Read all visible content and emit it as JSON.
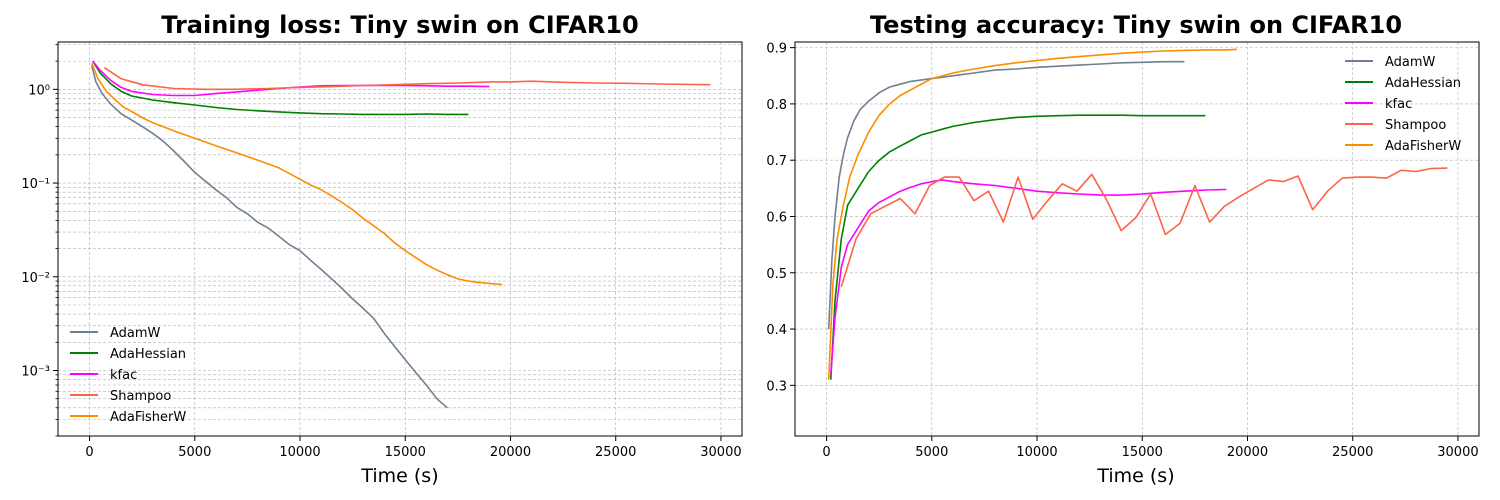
{
  "chart_data": [
    {
      "type": "line",
      "title": "Training loss: Tiny swin on CIFAR10",
      "xlabel": "Time (s)",
      "ylabel": "",
      "xlim": [
        -1500,
        31000
      ],
      "ylim": [
        0.0002,
        3.2
      ],
      "yscale": "log",
      "grid": true,
      "legend_position": "lower-left",
      "x_ticks": [
        0,
        5000,
        10000,
        15000,
        20000,
        25000,
        30000
      ],
      "x_tick_labels": [
        "0",
        "5000",
        "10000",
        "15000",
        "20000",
        "25000",
        "30000"
      ],
      "y_ticks": [
        0.001,
        0.01,
        0.1,
        1
      ],
      "y_tick_labels": [
        "10⁻³",
        "10⁻²",
        "10⁻¹",
        "10⁰"
      ],
      "series": [
        {
          "name": "AdamW",
          "color": "#708090",
          "x": [
            100,
            300,
            600,
            1000,
            1500,
            2000,
            2500,
            3000,
            3500,
            4000,
            4500,
            5000,
            5500,
            6000,
            6500,
            7000,
            7500,
            8000,
            8500,
            9000,
            9500,
            10000,
            10500,
            11000,
            11500,
            12000,
            12500,
            13000,
            13500,
            14000,
            14500,
            15000,
            15500,
            16000,
            16500,
            17000
          ],
          "y": [
            1.8,
            1.2,
            0.9,
            0.7,
            0.55,
            0.47,
            0.4,
            0.34,
            0.28,
            0.22,
            0.17,
            0.13,
            0.105,
            0.085,
            0.07,
            0.055,
            0.047,
            0.038,
            0.033,
            0.027,
            0.022,
            0.019,
            0.015,
            0.012,
            0.0095,
            0.0075,
            0.0058,
            0.0046,
            0.0036,
            0.0025,
            0.0018,
            0.0013,
            0.00095,
            0.0007,
            0.0005,
            0.0004
          ]
        },
        {
          "name": "AdaHessian",
          "color": "#008000",
          "x": [
            150,
            500,
            1000,
            1500,
            2000,
            3000,
            4000,
            5000,
            6000,
            7000,
            8000,
            9000,
            10000,
            11000,
            12000,
            13000,
            14000,
            15000,
            16000,
            17000,
            18000
          ],
          "y": [
            2.0,
            1.5,
            1.15,
            0.95,
            0.85,
            0.77,
            0.72,
            0.68,
            0.64,
            0.61,
            0.59,
            0.575,
            0.56,
            0.55,
            0.545,
            0.54,
            0.54,
            0.54,
            0.545,
            0.54,
            0.54
          ]
        },
        {
          "name": "kfac",
          "color": "#ff00ff",
          "x": [
            150,
            500,
            1000,
            1500,
            2000,
            3000,
            4000,
            5000,
            6000,
            7000,
            8000,
            9000,
            10000,
            11000,
            12000,
            13000,
            14000,
            15000,
            16000,
            17000,
            18000,
            19000
          ],
          "y": [
            2.0,
            1.6,
            1.25,
            1.05,
            0.95,
            0.88,
            0.86,
            0.86,
            0.9,
            0.94,
            0.98,
            1.02,
            1.06,
            1.09,
            1.1,
            1.1,
            1.1,
            1.1,
            1.09,
            1.08,
            1.08,
            1.07
          ]
        },
        {
          "name": "Shampoo",
          "color": "#ff6347",
          "x": [
            700,
            1500,
            2500,
            4000,
            5500,
            7000,
            8500,
            10000,
            11500,
            13000,
            14500,
            16000,
            17500,
            19000,
            20000,
            21000,
            22500,
            24000,
            25500,
            27000,
            28500,
            29500
          ],
          "y": [
            1.7,
            1.3,
            1.12,
            1.02,
            1.0,
            1.0,
            1.02,
            1.05,
            1.07,
            1.1,
            1.12,
            1.15,
            1.17,
            1.2,
            1.2,
            1.22,
            1.19,
            1.17,
            1.16,
            1.14,
            1.13,
            1.12
          ]
        },
        {
          "name": "AdaFisherW",
          "color": "#ff8c00",
          "x": [
            100,
            400,
            800,
            1200,
            1600,
            2000,
            2500,
            3000,
            3500,
            4000,
            5000,
            6000,
            7000,
            8000,
            9000,
            10000,
            10500,
            11000,
            11500,
            12000,
            12500,
            13000,
            13500,
            14000,
            14500,
            15000,
            15500,
            16000,
            16500,
            17000,
            17500,
            18000,
            18500,
            19000,
            19600
          ],
          "y": [
            1.9,
            1.3,
            0.95,
            0.78,
            0.65,
            0.58,
            0.5,
            0.44,
            0.4,
            0.36,
            0.3,
            0.25,
            0.21,
            0.175,
            0.145,
            0.11,
            0.095,
            0.085,
            0.073,
            0.062,
            0.052,
            0.042,
            0.035,
            0.029,
            0.023,
            0.019,
            0.016,
            0.0135,
            0.0118,
            0.0105,
            0.0095,
            0.009,
            0.0087,
            0.0085,
            0.0083
          ]
        }
      ]
    },
    {
      "type": "line",
      "title": "Testing accuracy: Tiny swin on CIFAR10",
      "xlabel": "Time (s)",
      "ylabel": "",
      "xlim": [
        -1500,
        31000
      ],
      "ylim": [
        0.21,
        0.91
      ],
      "yscale": "linear",
      "grid": true,
      "legend_position": "upper-right",
      "x_ticks": [
        0,
        5000,
        10000,
        15000,
        20000,
        25000,
        30000
      ],
      "x_tick_labels": [
        "0",
        "5000",
        "10000",
        "15000",
        "20000",
        "25000",
        "30000"
      ],
      "y_ticks": [
        0.3,
        0.4,
        0.5,
        0.6,
        0.7,
        0.8,
        0.9
      ],
      "y_tick_labels": [
        "0.3",
        "0.4",
        "0.5",
        "0.6",
        "0.7",
        "0.8",
        "0.9"
      ],
      "series": [
        {
          "name": "AdamW",
          "color": "#708090",
          "x": [
            100,
            250,
            400,
            600,
            800,
            1000,
            1300,
            1600,
            2000,
            2500,
            3000,
            3500,
            4000,
            5000,
            6000,
            7000,
            8000,
            9000,
            10000,
            11000,
            12000,
            13000,
            14000,
            15000,
            16000,
            17000
          ],
          "y": [
            0.4,
            0.52,
            0.6,
            0.67,
            0.71,
            0.74,
            0.77,
            0.79,
            0.805,
            0.82,
            0.83,
            0.835,
            0.84,
            0.845,
            0.85,
            0.855,
            0.86,
            0.862,
            0.865,
            0.867,
            0.869,
            0.871,
            0.873,
            0.874,
            0.875,
            0.875
          ]
        },
        {
          "name": "AdaHessian",
          "color": "#008000",
          "x": [
            200,
            400,
            700,
            1000,
            1500,
            2000,
            2500,
            3000,
            3500,
            4000,
            4500,
            5000,
            5500,
            6000,
            7000,
            8000,
            9000,
            10000,
            11000,
            12000,
            13000,
            14000,
            15000,
            16000,
            17000,
            18000
          ],
          "y": [
            0.31,
            0.45,
            0.56,
            0.62,
            0.65,
            0.68,
            0.7,
            0.715,
            0.725,
            0.735,
            0.745,
            0.75,
            0.755,
            0.76,
            0.767,
            0.772,
            0.776,
            0.778,
            0.779,
            0.78,
            0.78,
            0.78,
            0.779,
            0.779,
            0.779,
            0.779
          ]
        },
        {
          "name": "kfac",
          "color": "#ff00ff",
          "x": [
            200,
            400,
            700,
            1000,
            1500,
            2000,
            2500,
            3000,
            3500,
            4000,
            4500,
            5000,
            5500,
            6000,
            7000,
            8000,
            9000,
            10000,
            11000,
            12000,
            13000,
            14000,
            15000,
            16000,
            17000,
            18000,
            19000
          ],
          "y": [
            0.32,
            0.42,
            0.51,
            0.55,
            0.58,
            0.61,
            0.625,
            0.635,
            0.645,
            0.652,
            0.658,
            0.662,
            0.665,
            0.662,
            0.658,
            0.655,
            0.65,
            0.645,
            0.642,
            0.64,
            0.638,
            0.638,
            0.64,
            0.643,
            0.645,
            0.647,
            0.648
          ]
        },
        {
          "name": "Shampoo",
          "color": "#ff6347",
          "x": [
            700,
            1400,
            2100,
            3500,
            4200,
            4900,
            5600,
            6300,
            7000,
            7700,
            8400,
            9100,
            9800,
            10500,
            11200,
            11900,
            12600,
            13300,
            14000,
            14700,
            15400,
            16100,
            16800,
            17500,
            18200,
            18900,
            19600,
            20300,
            21000,
            21700,
            22400,
            23100,
            23800,
            24500,
            25200,
            25900,
            26600,
            27300,
            28000,
            28700,
            29500
          ],
          "y": [
            0.475,
            0.56,
            0.605,
            0.632,
            0.605,
            0.655,
            0.67,
            0.67,
            0.628,
            0.645,
            0.59,
            0.67,
            0.595,
            0.628,
            0.658,
            0.645,
            0.675,
            0.63,
            0.575,
            0.598,
            0.64,
            0.568,
            0.588,
            0.655,
            0.59,
            0.618,
            0.635,
            0.65,
            0.665,
            0.662,
            0.672,
            0.612,
            0.645,
            0.668,
            0.67,
            0.67,
            0.668,
            0.682,
            0.68,
            0.685,
            0.686
          ]
        },
        {
          "name": "AdaFisherW",
          "color": "#ff8c00",
          "x": [
            100,
            300,
            500,
            800,
            1100,
            1500,
            2000,
            2500,
            3000,
            3500,
            4000,
            4500,
            5000,
            6000,
            7000,
            8000,
            9000,
            10000,
            11000,
            12000,
            13000,
            14000,
            15000,
            16000,
            17000,
            18000,
            19000,
            19500
          ],
          "y": [
            0.31,
            0.48,
            0.56,
            0.62,
            0.67,
            0.71,
            0.75,
            0.78,
            0.8,
            0.815,
            0.825,
            0.835,
            0.845,
            0.855,
            0.862,
            0.868,
            0.873,
            0.877,
            0.881,
            0.884,
            0.887,
            0.89,
            0.892,
            0.894,
            0.895,
            0.896,
            0.896,
            0.897
          ]
        }
      ]
    }
  ]
}
